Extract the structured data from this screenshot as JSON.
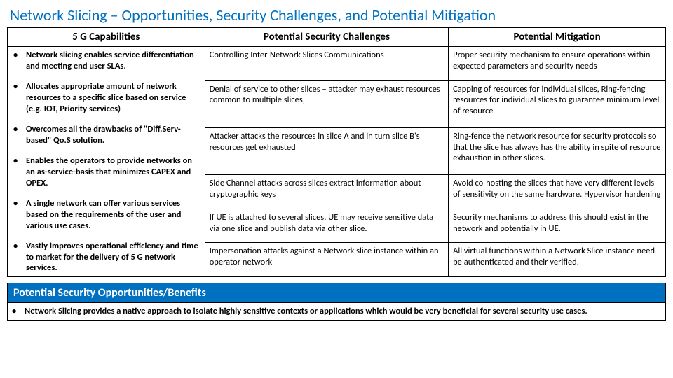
{
  "title": "Network Slicing – Opportunities, Security Challenges, and Potential Mitigation",
  "headers": {
    "cap": "5 G Capabilities",
    "challenge": "Potential Security Challenges",
    "mitigation": "Potential Mitigation"
  },
  "capabilities": [
    "Network slicing enables service differentiation and meeting end user SLAs.",
    "Allocates appropriate amount of network resources to a specific slice based on service (e.g. IOT, Priority services)",
    "Overcomes all the drawbacks of \"Diff.Serv-based\" Qo.S solution.",
    "Enables the operators to provide networks on an as-service-basis that minimizes CAPEX and OPEX.",
    "A single network can offer various services based on the requirements of the user and various use cases.",
    "Vastly improves operational efficiency and time to market for the delivery of 5 G network services."
  ],
  "rows": [
    {
      "challenge": "Controlling Inter-Network Slices Communications",
      "mitigation": "Proper security mechanism to ensure operations within expected parameters and security needs"
    },
    {
      "challenge": "Denial of service to other slices – attacker may exhaust resources common to multiple slices,",
      "mitigation": "Capping of resources for individual slices, Ring-fencing resources for individual slices to guarantee minimum level of resource"
    },
    {
      "challenge": "Attacker attacks the resources in slice A and in turn slice B's resources get exhausted",
      "mitigation": "Ring-fence the network resource for security protocols so that the slice has always has the ability in spite of resource exhaustion in other slices."
    },
    {
      "challenge": "Side Channel attacks across slices extract information about cryptographic keys",
      "mitigation": "Avoid co-hosting the slices that have very different levels of sensitivity on the same hardware. Hypervisor hardening"
    },
    {
      "challenge": "If UE is attached to several slices. UE may receive sensitive data via one slice and publish data via other slice.",
      "mitigation": "Security mechanisms to address this should exist in the network and potentially in UE."
    },
    {
      "challenge": "Impersonation attacks against a Network slice instance within an operator network",
      "mitigation": "All virtual functions within a Network Slice instance need be authenticated and their verified."
    }
  ],
  "benefits": {
    "title": "Potential Security Opportunities/Benefits",
    "items": [
      "Network Slicing provides a native approach to isolate highly sensitive contexts or applications which would be very beneficial for several security use cases."
    ]
  }
}
